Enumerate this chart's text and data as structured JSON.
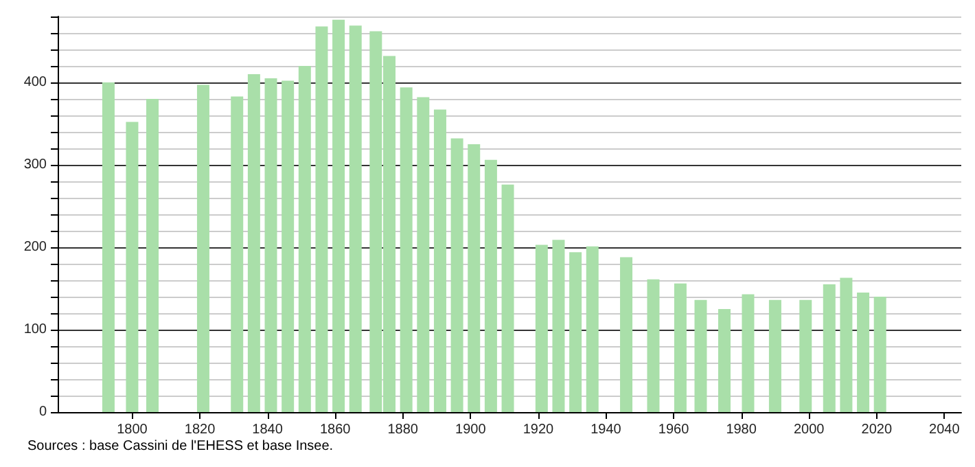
{
  "chart_data": {
    "type": "bar",
    "x": [
      1793,
      1800,
      1806,
      1821,
      1831,
      1836,
      1841,
      1846,
      1851,
      1856,
      1861,
      1866,
      1872,
      1876,
      1881,
      1886,
      1891,
      1896,
      1901,
      1906,
      1911,
      1921,
      1926,
      1931,
      1936,
      1946,
      1954,
      1962,
      1968,
      1975,
      1982,
      1990,
      1999,
      2006,
      2011,
      2016,
      2021
    ],
    "values": [
      400,
      352,
      380,
      397,
      383,
      410,
      405,
      402,
      420,
      468,
      476,
      469,
      462,
      432,
      394,
      382,
      367,
      332,
      325,
      306,
      276,
      203,
      209,
      194,
      201,
      188,
      161,
      156,
      136,
      125,
      143,
      136,
      136,
      155,
      163,
      145,
      140
    ],
    "color": "#a9dfa9",
    "xlim": [
      1778,
      2045
    ],
    "xticks": [
      1800,
      1820,
      1840,
      1860,
      1880,
      1900,
      1920,
      1940,
      1960,
      1980,
      2000,
      2020,
      2040
    ],
    "ylim": [
      0,
      480
    ],
    "yticks": [
      0,
      {
        "value": 20,
        "label": null
      },
      {
        "value": 40,
        "label": null
      },
      {
        "value": 60,
        "label": null
      },
      {
        "value": 80,
        "label": null
      },
      100,
      {
        "value": 120,
        "label": null
      },
      {
        "value": 140,
        "label": null
      },
      {
        "value": 160,
        "label": null
      },
      {
        "value": 180,
        "label": null
      },
      200,
      {
        "value": 220,
        "label": null
      },
      {
        "value": 240,
        "label": null
      },
      {
        "value": 260,
        "label": null
      },
      {
        "value": 280,
        "label": null
      },
      300,
      {
        "value": 320,
        "label": null
      },
      {
        "value": 340,
        "label": null
      },
      {
        "value": 360,
        "label": null
      },
      {
        "value": 380,
        "label": null
      },
      400,
      {
        "value": 420,
        "label": null
      },
      {
        "value": 440,
        "label": null
      },
      {
        "value": 460,
        "label": null
      },
      {
        "value": 480,
        "label": null
      }
    ],
    "grid": "y",
    "annotations": [
      "Sources : base Cassini de l'EHESS et base Insee."
    ]
  }
}
